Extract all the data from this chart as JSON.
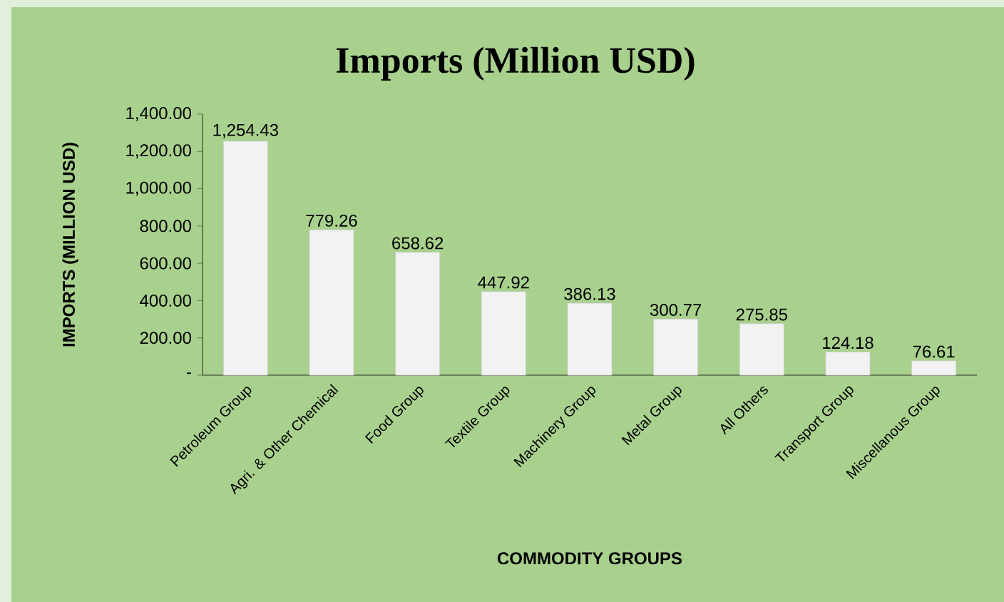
{
  "chart_data": {
    "type": "bar",
    "title": "Imports (Million USD)",
    "xlabel": "COMMODITY GROUPS",
    "ylabel": "IMPORTS (MILLION USD)",
    "categories": [
      "Petroleum Group",
      "Agri. & Other Chemical",
      "Food Group",
      "Textile Group",
      "Machinery Group",
      "Metal Group",
      "All Others",
      "Transport Group",
      "Miscellanous Group"
    ],
    "values": [
      1254.43,
      779.26,
      658.62,
      447.92,
      386.13,
      300.77,
      275.85,
      124.18,
      76.61
    ],
    "value_labels": [
      "1,254.43",
      "779.26",
      "658.62",
      "447.92",
      "386.13",
      "300.77",
      "275.85",
      "124.18",
      "76.61"
    ],
    "color": "#f2f2f2",
    "ylim": [
      0,
      1400
    ],
    "yticks": [
      {
        "value": 0,
        "label": "-"
      },
      {
        "value": 200,
        "label": "200.00"
      },
      {
        "value": 400,
        "label": "400.00"
      },
      {
        "value": 600,
        "label": "600.00"
      },
      {
        "value": 800,
        "label": "800.00"
      },
      {
        "value": 1000,
        "label": "1,000.00"
      },
      {
        "value": 1200,
        "label": "1,200.00"
      },
      {
        "value": 1400,
        "label": "1,400.00"
      }
    ],
    "grid": false
  }
}
